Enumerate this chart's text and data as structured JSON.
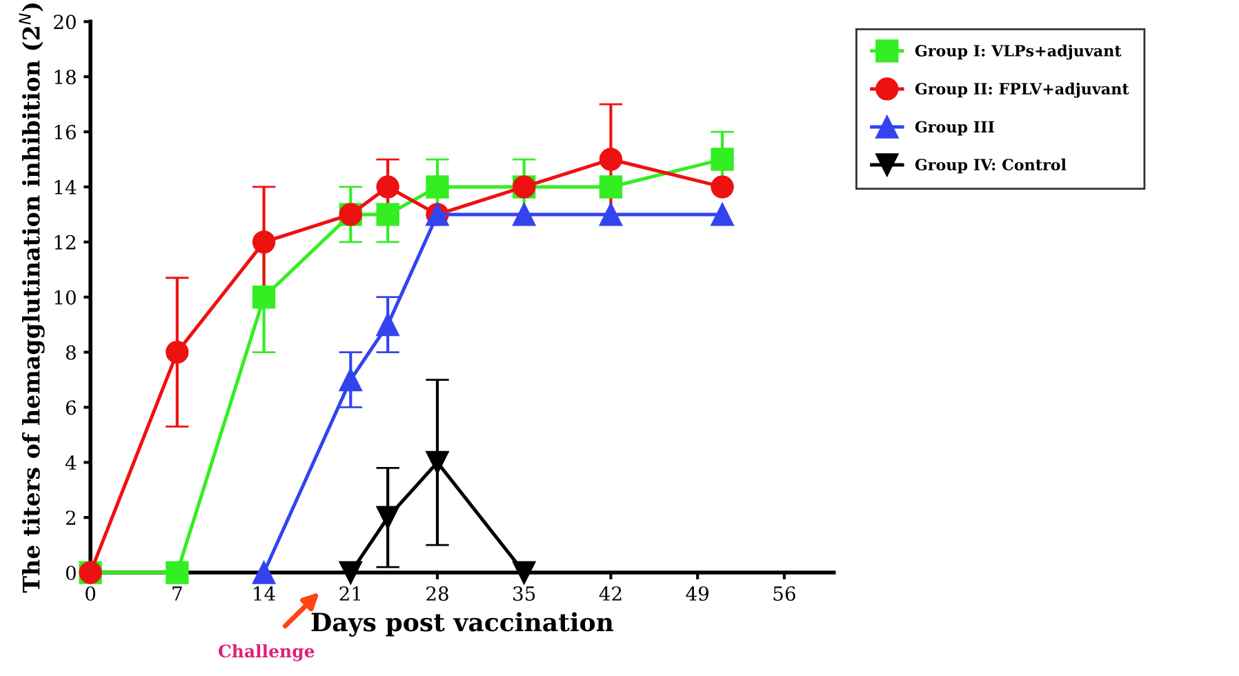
{
  "chart_data": {
    "type": "line",
    "xlabel": "Days post vaccination",
    "ylabel": "The titers of hemagglutination inhibition (2$^{N}$)",
    "xlim": [
      0,
      60
    ],
    "xticks": [
      0,
      7,
      14,
      21,
      28,
      35,
      42,
      49,
      56
    ],
    "ylim": [
      0,
      20
    ],
    "yticks": [
      0,
      2,
      4,
      6,
      8,
      10,
      12,
      14,
      16,
      18,
      20
    ],
    "grid": false,
    "legend": "top right",
    "annotations": [
      "Challenge"
    ],
    "series": [
      {
        "name": "Group I: VLPs+adjuvant",
        "color": "#33ee22",
        "marker": "square",
        "x": [
          0,
          7,
          14,
          21,
          24,
          28,
          35,
          42,
          51
        ],
        "values": [
          0,
          0,
          10,
          13,
          13,
          14,
          14,
          14,
          15
        ],
        "errors": [
          null,
          null,
          2,
          1,
          1,
          1,
          1,
          null,
          1
        ]
      },
      {
        "name": "Group II: FPLV+adjuvant",
        "color": "#ee1111",
        "marker": "circle",
        "x": [
          0,
          7,
          14,
          21,
          24,
          28,
          35,
          42,
          51
        ],
        "values": [
          0,
          8,
          12,
          13,
          14,
          13,
          14,
          15,
          14
        ],
        "errors": [
          null,
          2.7,
          2,
          null,
          1,
          null,
          null,
          2,
          null
        ]
      },
      {
        "name": "Group III",
        "color": "#3344ee",
        "marker": "triangle",
        "x": [
          14,
          21,
          24,
          28,
          35,
          42,
          51
        ],
        "values": [
          0,
          7,
          9,
          13,
          13,
          13,
          13
        ],
        "errors": [
          null,
          1,
          1,
          null,
          null,
          null,
          null
        ]
      },
      {
        "name": "Group IV: Control",
        "color": "#000000",
        "marker": "triangle_down",
        "x": [
          21,
          24,
          28,
          35
        ],
        "values": [
          0,
          2,
          4,
          0
        ],
        "errors": [
          null,
          1.8,
          3,
          null
        ]
      }
    ]
  }
}
